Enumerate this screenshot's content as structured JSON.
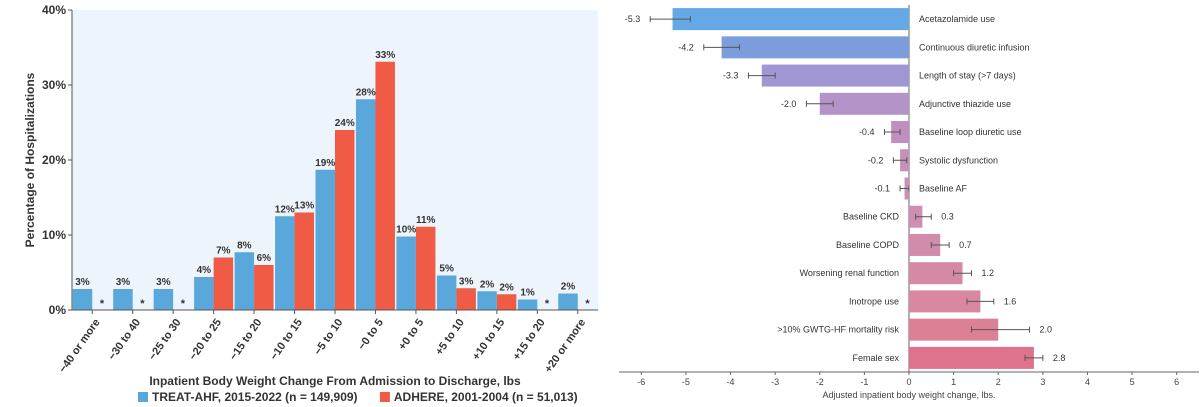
{
  "chart_data": [
    {
      "type": "bar",
      "title": "",
      "xlabel": "Inpatient Body Weight Change From Admission to Discharge, lbs",
      "ylabel": "Percentage of Hospitalizations",
      "ylim": [
        0,
        40
      ],
      "yticks": [
        "0%",
        "10%",
        "20%",
        "30%",
        "40%"
      ],
      "grid": false,
      "legend_position": "bottom",
      "categories": [
        "−40 or more",
        "−30 to 40",
        "−25 to 30",
        "−20 to 25",
        "−15 to 20",
        "−10 to 15",
        "−5 to 10",
        "−0 to 5",
        "+0 to 5",
        "+5 to 10",
        "+10 to 15",
        "+15 to 20",
        "+20 or more"
      ],
      "series": [
        {
          "name": "TREAT-AHF, 2015-2022 (n = 149,909)",
          "color": "#5aa7dc",
          "values": [
            2.8,
            2.8,
            2.8,
            4.4,
            7.7,
            12.5,
            18.7,
            28.1,
            9.8,
            4.6,
            2.5,
            1.4,
            2.2
          ],
          "labels": [
            "3%",
            "3%",
            "3%",
            "4%",
            "8%",
            "12%",
            "19%",
            "28%",
            "10%",
            "5%",
            "2%",
            "1%",
            "2%"
          ]
        },
        {
          "name": "ADHERE, 2001-2004 (n = 51,013)",
          "color": "#ef5b45",
          "values": [
            null,
            null,
            null,
            7.0,
            6.0,
            13.0,
            24.0,
            33.1,
            11.1,
            2.9,
            2.1,
            null,
            null
          ],
          "labels": [
            "*",
            "*",
            "*",
            "7%",
            "6%",
            "13%",
            "24%",
            "33%",
            "11%",
            "3%",
            "2%",
            "*",
            "*"
          ]
        }
      ]
    },
    {
      "type": "bar",
      "orientation": "horizontal",
      "title": "",
      "xlabel": "Adjusted inpatient body weight change, lbs.",
      "ylabel": "",
      "xlim": [
        -6.5,
        6.5
      ],
      "xticks": [
        "-6",
        "-5",
        "-4",
        "-3",
        "-2",
        "-1",
        "0",
        "1",
        "2",
        "3",
        "4",
        "5",
        "6"
      ],
      "grid": false,
      "categories": [
        "Acetazolamide use",
        "Continuous diuretic infusion",
        "Length of stay (>7 days)",
        "Adjunctive thiazide use",
        "Baseline loop diuretic use",
        "Systolic dysfunction",
        "Baseline AF",
        "Baseline CKD",
        "Baseline COPD",
        "Worsening renal function",
        "Inotrope use",
        ">10% GWTG-HF mortality risk",
        "Female sex"
      ],
      "values": [
        -5.3,
        -4.2,
        -3.3,
        -2.0,
        -0.4,
        -0.2,
        -0.1,
        0.3,
        0.7,
        1.2,
        1.6,
        2.0,
        2.8
      ],
      "value_labels": [
        "-5.3",
        "-4.2",
        "-3.3",
        "-2.0",
        "-0.4",
        "-0.2",
        "-0.1",
        "0.3",
        "0.7",
        "1.2",
        "1.6",
        "2.0",
        "2.8"
      ],
      "error_low": [
        -5.8,
        -4.6,
        -3.6,
        -2.3,
        -0.55,
        -0.35,
        -0.2,
        0.15,
        0.5,
        1.0,
        1.3,
        1.4,
        2.6
      ],
      "error_high": [
        -4.9,
        -3.8,
        -3.0,
        -1.7,
        -0.2,
        -0.05,
        0.0,
        0.5,
        0.9,
        1.4,
        1.9,
        2.7,
        3.0
      ],
      "colors": [
        "#64a9e6",
        "#7b9ddb",
        "#a097d2",
        "#b493c9",
        "#c08fbf",
        "#c590b9",
        "#c991b5",
        "#cf8eb2",
        "#d18cac",
        "#d48aa5",
        "#d9889f",
        "#dc8096",
        "#e0738c"
      ]
    }
  ]
}
